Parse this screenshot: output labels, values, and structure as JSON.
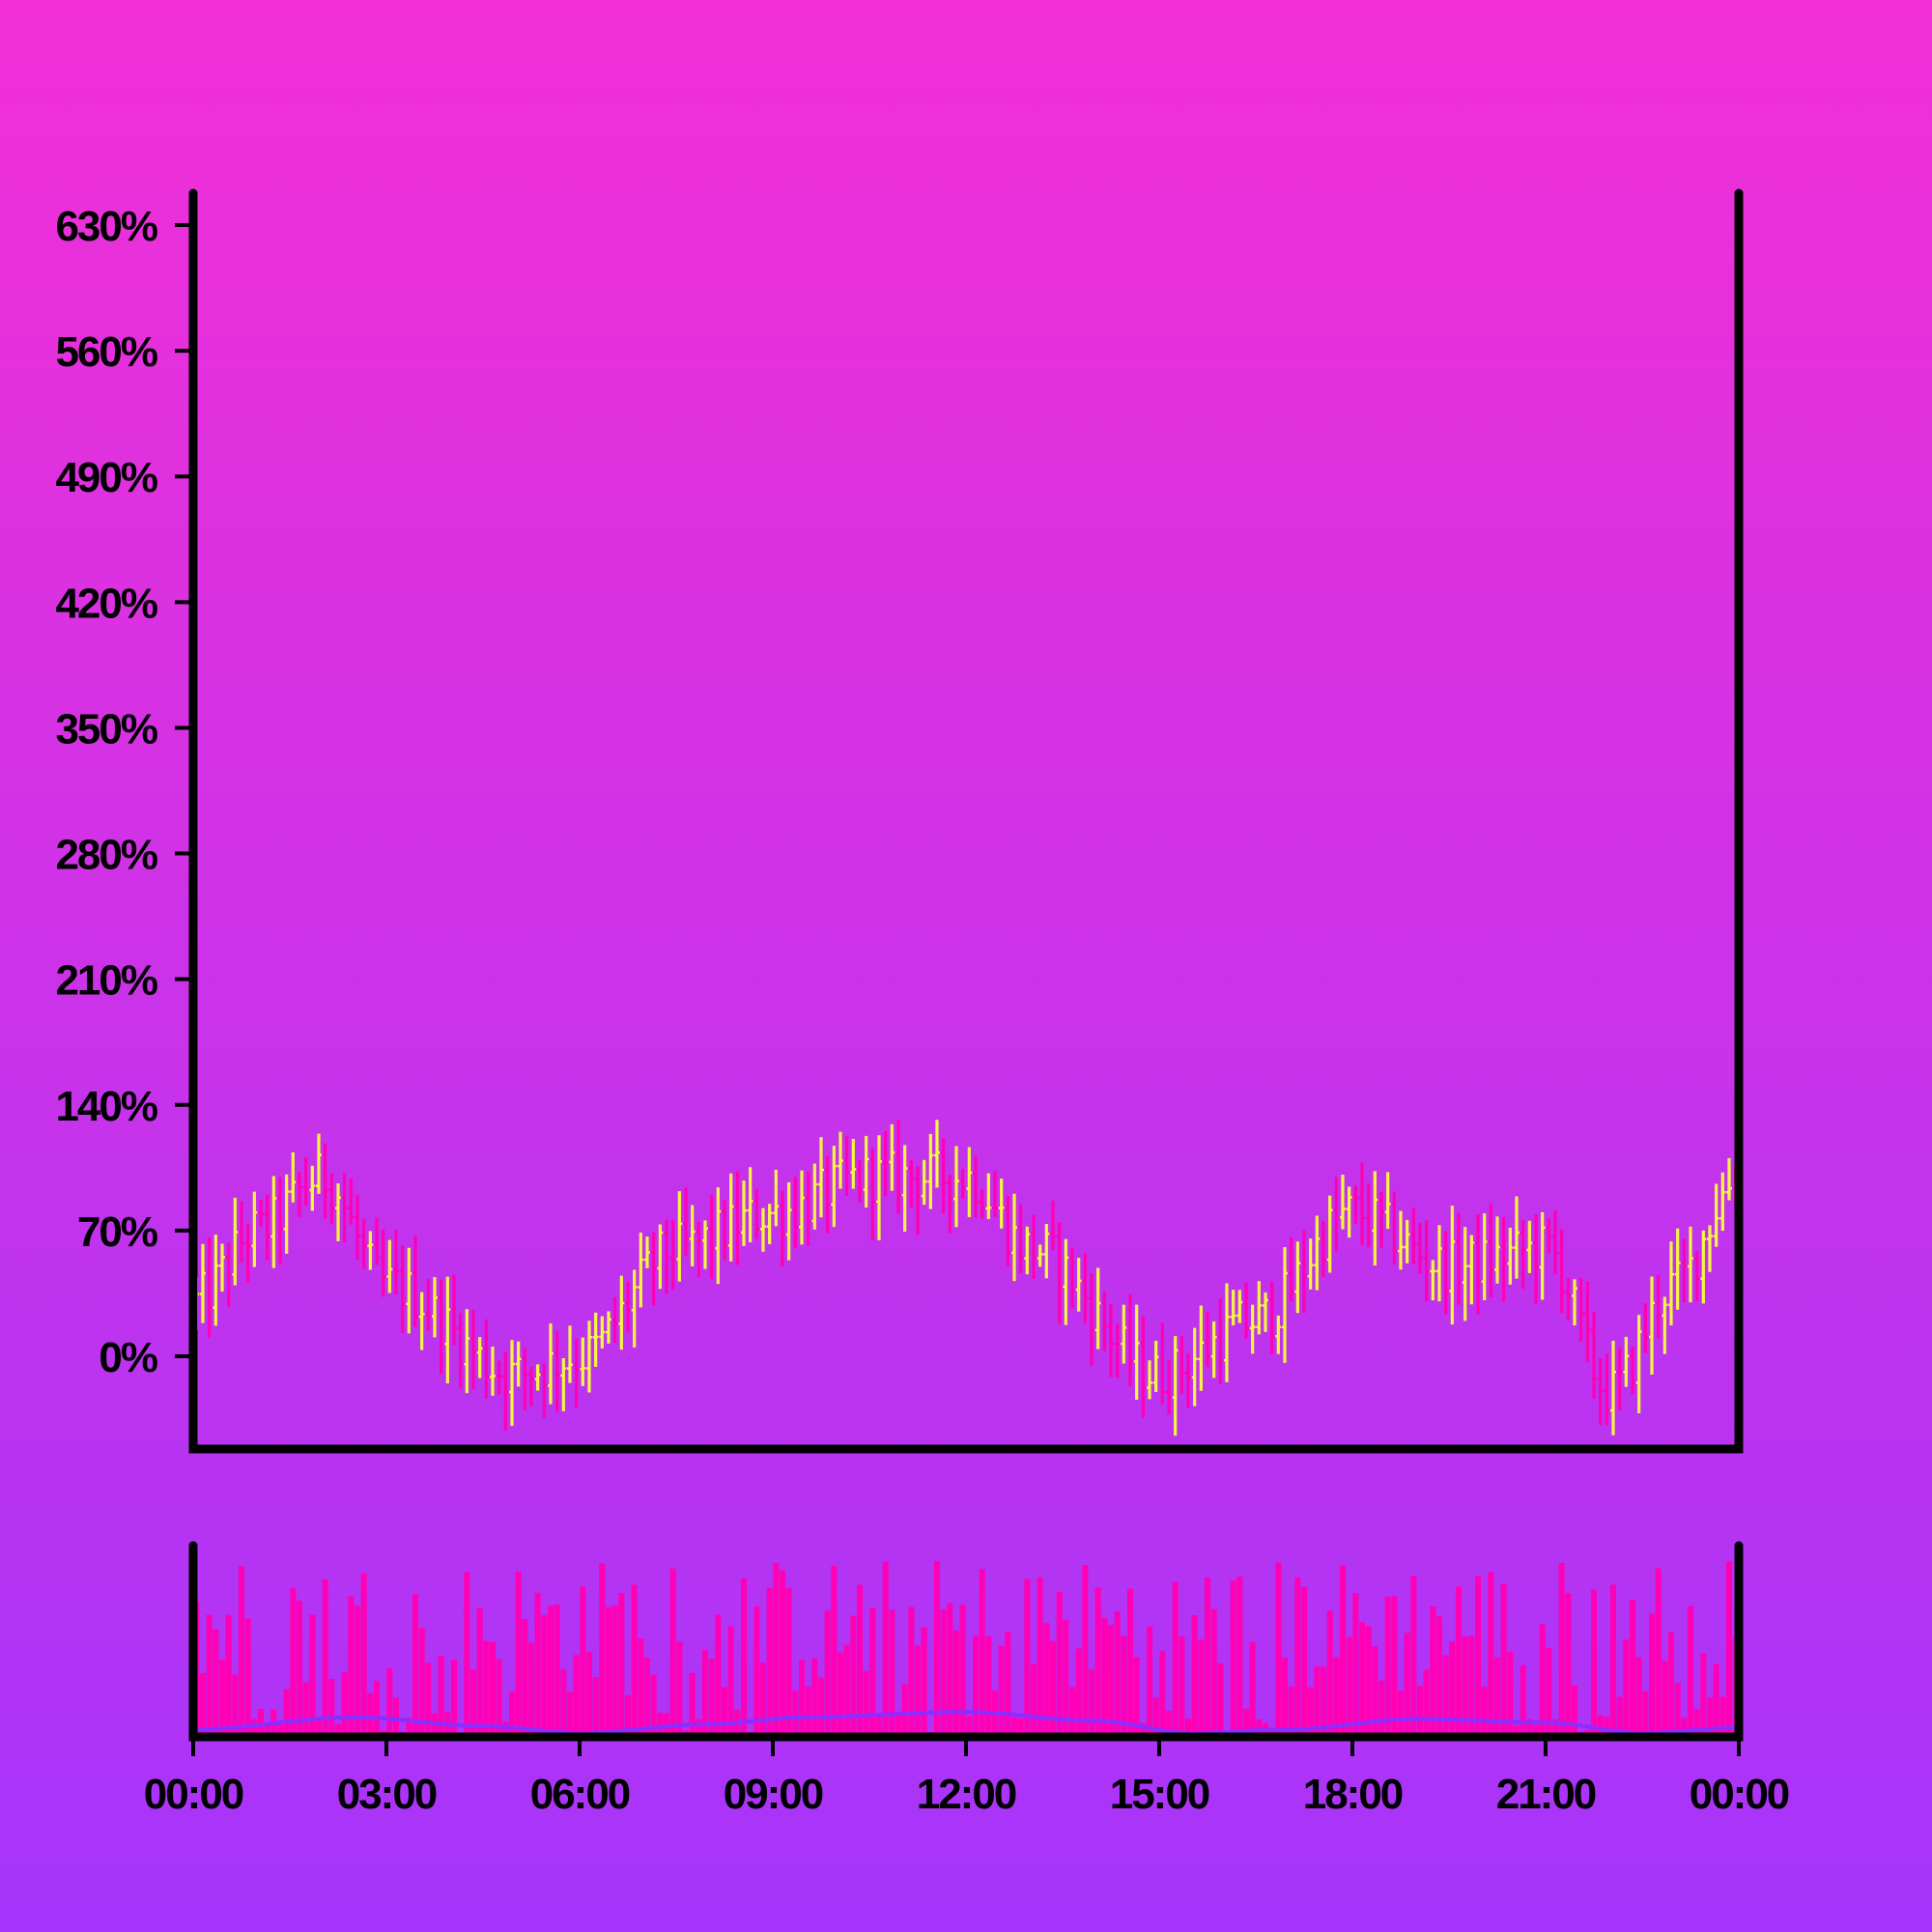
{
  "chart_data": [
    {
      "type": "ohlc",
      "panel": "price",
      "y_tick_labels": [
        "0%",
        "70%",
        "140%",
        "210%",
        "280%",
        "350%",
        "420%",
        "490%",
        "560%",
        "630%"
      ],
      "y_ticks": [
        0,
        70,
        140,
        210,
        280,
        350,
        420,
        490,
        560,
        630
      ],
      "ylim": [
        -50,
        650
      ],
      "x_range_hours": [
        0,
        24
      ],
      "grid": false,
      "legend": "none",
      "colors": {
        "up": "#f5f542",
        "down": "#ff00b4"
      },
      "bars_per_hour": 10,
      "trend_anchors": {
        "hours": [
          0,
          1.0,
          2.0,
          3.0,
          5.0,
          6.0,
          7.5,
          9.0,
          10.5,
          12.0,
          13.0,
          15.0,
          16.5,
          18.0,
          19.5,
          21.0,
          22.0,
          23.0,
          24.0
        ],
        "values": [
          30,
          70,
          100,
          40,
          -10,
          0,
          60,
          80,
          100,
          100,
          60,
          -10,
          20,
          80,
          50,
          60,
          -20,
          40,
          100
        ]
      }
    },
    {
      "type": "bar",
      "panel": "volume",
      "x_tick_labels": [
        "00:00",
        "03:00",
        "06:00",
        "09:00",
        "12:00",
        "15:00",
        "18:00",
        "21:00",
        "00:00"
      ],
      "x_ticks_hours": [
        0,
        3,
        6,
        9,
        12,
        15,
        18,
        21,
        24
      ],
      "colors": {
        "bars": "#ff00b4",
        "average_line": "#8a2dff"
      },
      "series": [
        {
          "type": "line",
          "smooth_anchors_hours": [
            0,
            2.5,
            4.5,
            6,
            8,
            9.5,
            12,
            14,
            15.5,
            17,
            19,
            21,
            22.5,
            24
          ],
          "values": [
            0.02,
            0.09,
            0.04,
            0.0,
            0.05,
            0.09,
            0.12,
            0.07,
            0.0,
            0.02,
            0.08,
            0.06,
            0.0,
            0.03
          ]
        }
      ]
    }
  ]
}
